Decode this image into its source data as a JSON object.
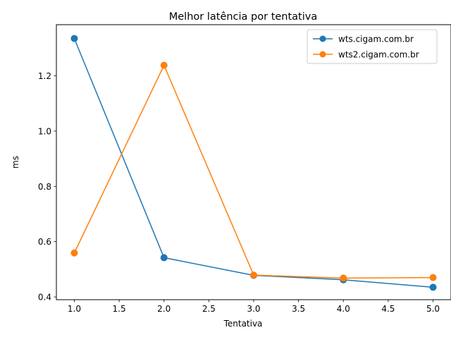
{
  "chart_data": {
    "type": "line",
    "title": "Melhor latência por tentativa",
    "xlabel": "Tentativa",
    "ylabel": "ms",
    "xlim": [
      0.8,
      5.2
    ],
    "ylim": [
      0.39,
      1.385
    ],
    "x_ticks": [
      "1.0",
      "1.5",
      "2.0",
      "2.5",
      "3.0",
      "3.5",
      "4.0",
      "4.5",
      "5.0"
    ],
    "y_ticks": [
      "0.4",
      "0.6",
      "0.8",
      "1.0",
      "1.2"
    ],
    "x": [
      1.0,
      2.0,
      3.0,
      4.0,
      5.0
    ],
    "series": [
      {
        "name": "wts.cigam.com.br",
        "color": "#1f77b4",
        "values": [
          1.335,
          0.542,
          0.478,
          0.462,
          0.435
        ]
      },
      {
        "name": "wts2.cigam.com.br",
        "color": "#ff7f0e",
        "values": [
          0.559,
          1.238,
          0.479,
          0.468,
          0.47
        ]
      }
    ],
    "legend": "top-right",
    "grid": false,
    "markers": "circle"
  }
}
